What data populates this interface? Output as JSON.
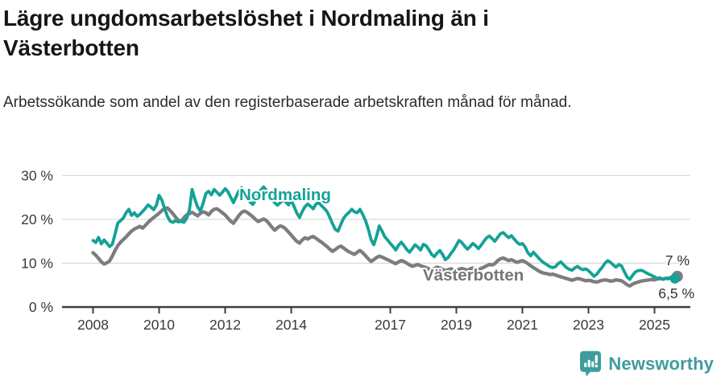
{
  "header": {
    "title": "Lägre ungdomsarbetslöshet i Nordmaling än i Västerbotten",
    "subtitle": "Arbetssökande som andel av den registerbaserade arbetskraften månad för månad."
  },
  "footer": {
    "brand": "Newsworthy",
    "logo_icon": "newsworthy-pin-bar-chart-icon",
    "brand_color": "#3f9c9d"
  },
  "chart_data": {
    "type": "line",
    "title": "Lägre ungdomsarbetslöshet i Nordmaling än i Västerbotten",
    "subtitle": "Arbetssökande som andel av den registerbaserade arbetskraften månad för månad.",
    "unit": "%",
    "grid": true,
    "x_start_year": 2008,
    "x_step_months": 1,
    "ylim": [
      0,
      30
    ],
    "y_ticks": [
      {
        "value": 0,
        "label": "0 %"
      },
      {
        "value": 10,
        "label": "10 %"
      },
      {
        "value": 20,
        "label": "20 %"
      },
      {
        "value": 30,
        "label": "30 %"
      }
    ],
    "x_ticks": [
      {
        "year": 2008,
        "label": "2008"
      },
      {
        "year": 2010,
        "label": "2010"
      },
      {
        "year": 2012,
        "label": "2012"
      },
      {
        "year": 2014,
        "label": "2014"
      },
      {
        "year": 2017,
        "label": "2017"
      },
      {
        "year": 2019,
        "label": "2019"
      },
      {
        "year": 2021,
        "label": "2021"
      },
      {
        "year": 2023,
        "label": "2023"
      },
      {
        "year": 2025,
        "label": "2025"
      }
    ],
    "colors": {
      "nordmaling": "#14a296",
      "vasterbotten": "#7d7d80",
      "grid": "#dcdcdc",
      "axis": "#3d3d3d",
      "tick_text": "#3a3a3a"
    },
    "series": [
      {
        "name": "Västerbotten",
        "color": "#7d7d80",
        "end_value": 7.0,
        "end_label": "7 %",
        "values": [
          12.4,
          11.8,
          11.1,
          10.3,
          9.8,
          10.1,
          10.5,
          11.6,
          12.9,
          14.0,
          14.8,
          15.4,
          16.0,
          16.7,
          17.3,
          17.8,
          18.1,
          18.4,
          18.0,
          18.6,
          19.3,
          19.9,
          20.4,
          20.9,
          21.4,
          22.0,
          22.5,
          22.6,
          22.0,
          21.3,
          20.5,
          19.8,
          19.5,
          20.4,
          21.0,
          21.3,
          21.6,
          21.2,
          20.8,
          21.4,
          21.7,
          21.5,
          21.0,
          21.8,
          22.3,
          22.4,
          22.0,
          21.5,
          21.0,
          20.3,
          19.6,
          19.1,
          20.0,
          20.9,
          21.6,
          21.9,
          21.6,
          21.1,
          20.6,
          20.0,
          19.5,
          19.8,
          20.1,
          19.7,
          19.0,
          18.2,
          17.5,
          18.1,
          18.5,
          18.3,
          17.8,
          17.1,
          16.4,
          15.7,
          15.0,
          14.6,
          15.3,
          15.8,
          15.5,
          15.9,
          16.1,
          15.7,
          15.2,
          14.8,
          14.3,
          13.8,
          13.2,
          12.7,
          13.1,
          13.6,
          13.9,
          13.5,
          13.0,
          12.6,
          12.3,
          12.0,
          12.5,
          12.9,
          12.4,
          11.7,
          11.0,
          10.4,
          10.8,
          11.3,
          11.6,
          11.4,
          11.1,
          10.8,
          10.5,
          10.2,
          9.9,
          10.3,
          10.6,
          10.4,
          10.0,
          9.6,
          9.3,
          9.5,
          9.7,
          9.4,
          9.2,
          9.0,
          8.7,
          8.5,
          8.8,
          9.1,
          8.9,
          8.6,
          8.3,
          8.5,
          8.7,
          8.5,
          8.4,
          8.6,
          8.8,
          8.6,
          8.4,
          8.7,
          8.9,
          8.7,
          8.5,
          8.8,
          9.1,
          9.4,
          9.7,
          9.6,
          9.9,
          10.6,
          11.0,
          11.2,
          10.9,
          10.6,
          10.8,
          10.5,
          10.2,
          10.4,
          10.6,
          10.3,
          9.9,
          9.4,
          9.0,
          8.6,
          8.2,
          7.9,
          7.7,
          7.6,
          7.4,
          7.5,
          7.3,
          7.1,
          6.9,
          6.7,
          6.5,
          6.3,
          6.1,
          6.3,
          6.5,
          6.4,
          6.2,
          6.0,
          6.1,
          6.0,
          5.8,
          5.7,
          5.9,
          6.1,
          6.2,
          6.1,
          5.9,
          6.0,
          6.2,
          6.1,
          6.0,
          5.6,
          5.1,
          4.8,
          5.2,
          5.5,
          5.7,
          5.9,
          6.0,
          6.1,
          6.2,
          6.3,
          6.2,
          6.4,
          6.5,
          6.4,
          6.5,
          6.6,
          6.7,
          6.9,
          7.0
        ]
      },
      {
        "name": "Nordmaling",
        "color": "#14a296",
        "end_value": 6.5,
        "end_label": "6,5 %",
        "values": [
          15.2,
          14.7,
          15.9,
          14.4,
          15.3,
          14.6,
          13.8,
          14.3,
          16.6,
          19.2,
          19.7,
          20.3,
          21.5,
          22.3,
          20.9,
          21.5,
          20.7,
          21.1,
          21.8,
          22.5,
          23.3,
          22.8,
          22.2,
          23.2,
          25.5,
          24.4,
          22.5,
          20.7,
          19.6,
          19.3,
          19.7,
          19.4,
          19.6,
          19.3,
          20.2,
          22.1,
          26.8,
          24.6,
          22.8,
          21.9,
          23.7,
          25.9,
          26.4,
          25.6,
          26.8,
          26.2,
          25.5,
          26.2,
          27.0,
          26.3,
          25.1,
          23.8,
          25.2,
          26.5,
          27.2,
          26.4,
          25.2,
          24.0,
          23.4,
          24.3,
          26.1,
          26.7,
          27.4,
          26.6,
          26.0,
          24.9,
          23.8,
          23.2,
          23.8,
          24.5,
          24.0,
          23.3,
          24.3,
          23.0,
          21.5,
          20.4,
          21.8,
          22.9,
          23.5,
          23.0,
          22.4,
          23.5,
          23.8,
          23.1,
          22.5,
          21.8,
          20.5,
          19.0,
          17.7,
          17.3,
          18.8,
          20.2,
          21.0,
          21.6,
          22.3,
          21.7,
          21.5,
          22.3,
          21.1,
          19.7,
          17.8,
          15.4,
          14.2,
          16.1,
          18.5,
          17.3,
          16.0,
          15.3,
          14.5,
          13.8,
          13.0,
          14.1,
          14.8,
          14.0,
          13.1,
          12.5,
          13.3,
          14.2,
          13.7,
          13.0,
          14.3,
          14.0,
          13.1,
          12.0,
          11.5,
          12.3,
          12.9,
          12.0,
          10.8,
          11.3,
          12.2,
          13.0,
          14.1,
          15.2,
          14.7,
          13.9,
          13.2,
          13.8,
          14.5,
          14.0,
          13.3,
          14.1,
          15.0,
          15.8,
          16.2,
          15.6,
          15.0,
          15.9,
          16.7,
          17.0,
          16.4,
          15.8,
          16.3,
          15.5,
          14.8,
          14.3,
          14.5,
          13.7,
          12.4,
          11.7,
          12.5,
          11.8,
          11.1,
          10.5,
          10.0,
          9.6,
          9.2,
          9.0,
          9.2,
          9.9,
          10.3,
          9.6,
          9.0,
          8.6,
          8.4,
          8.9,
          9.3,
          8.8,
          8.5,
          8.7,
          8.3,
          7.7,
          7.0,
          7.5,
          8.3,
          9.1,
          10.0,
          10.6,
          10.2,
          9.6,
          9.1,
          9.7,
          9.4,
          8.1,
          6.9,
          6.3,
          7.2,
          8.0,
          8.3,
          8.4,
          8.2,
          7.8,
          7.5,
          7.2,
          6.9,
          6.5,
          6.7,
          6.3,
          6.6,
          6.4,
          6.8,
          6.4,
          6.5
        ]
      }
    ],
    "annotations": [
      {
        "text": "Nordmaling",
        "series": "Nordmaling",
        "color": "#14a296"
      },
      {
        "text": "Västerbotten",
        "series": "Västerbotten",
        "color": "#77777a"
      },
      {
        "text": "7 %",
        "series": "Västerbotten"
      },
      {
        "text": "6,5 %",
        "series": "Nordmaling"
      }
    ]
  }
}
